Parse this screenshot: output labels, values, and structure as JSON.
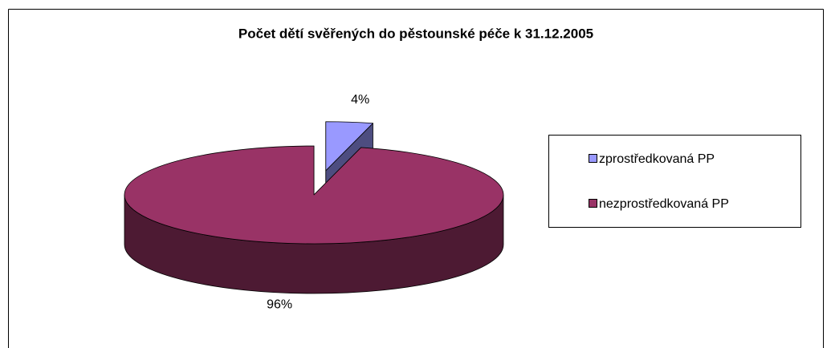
{
  "chart_data": {
    "type": "pie",
    "title": "Počet dětí svěřených do pěstounské péče k 31.12.2005",
    "categories": [
      "zprostředkovaná PP",
      "nezprostředkovaná PP"
    ],
    "values": [
      4,
      96
    ],
    "value_labels": [
      "4%",
      "96%"
    ],
    "colors": [
      "#9999ff",
      "#993366"
    ],
    "legend": "right"
  }
}
